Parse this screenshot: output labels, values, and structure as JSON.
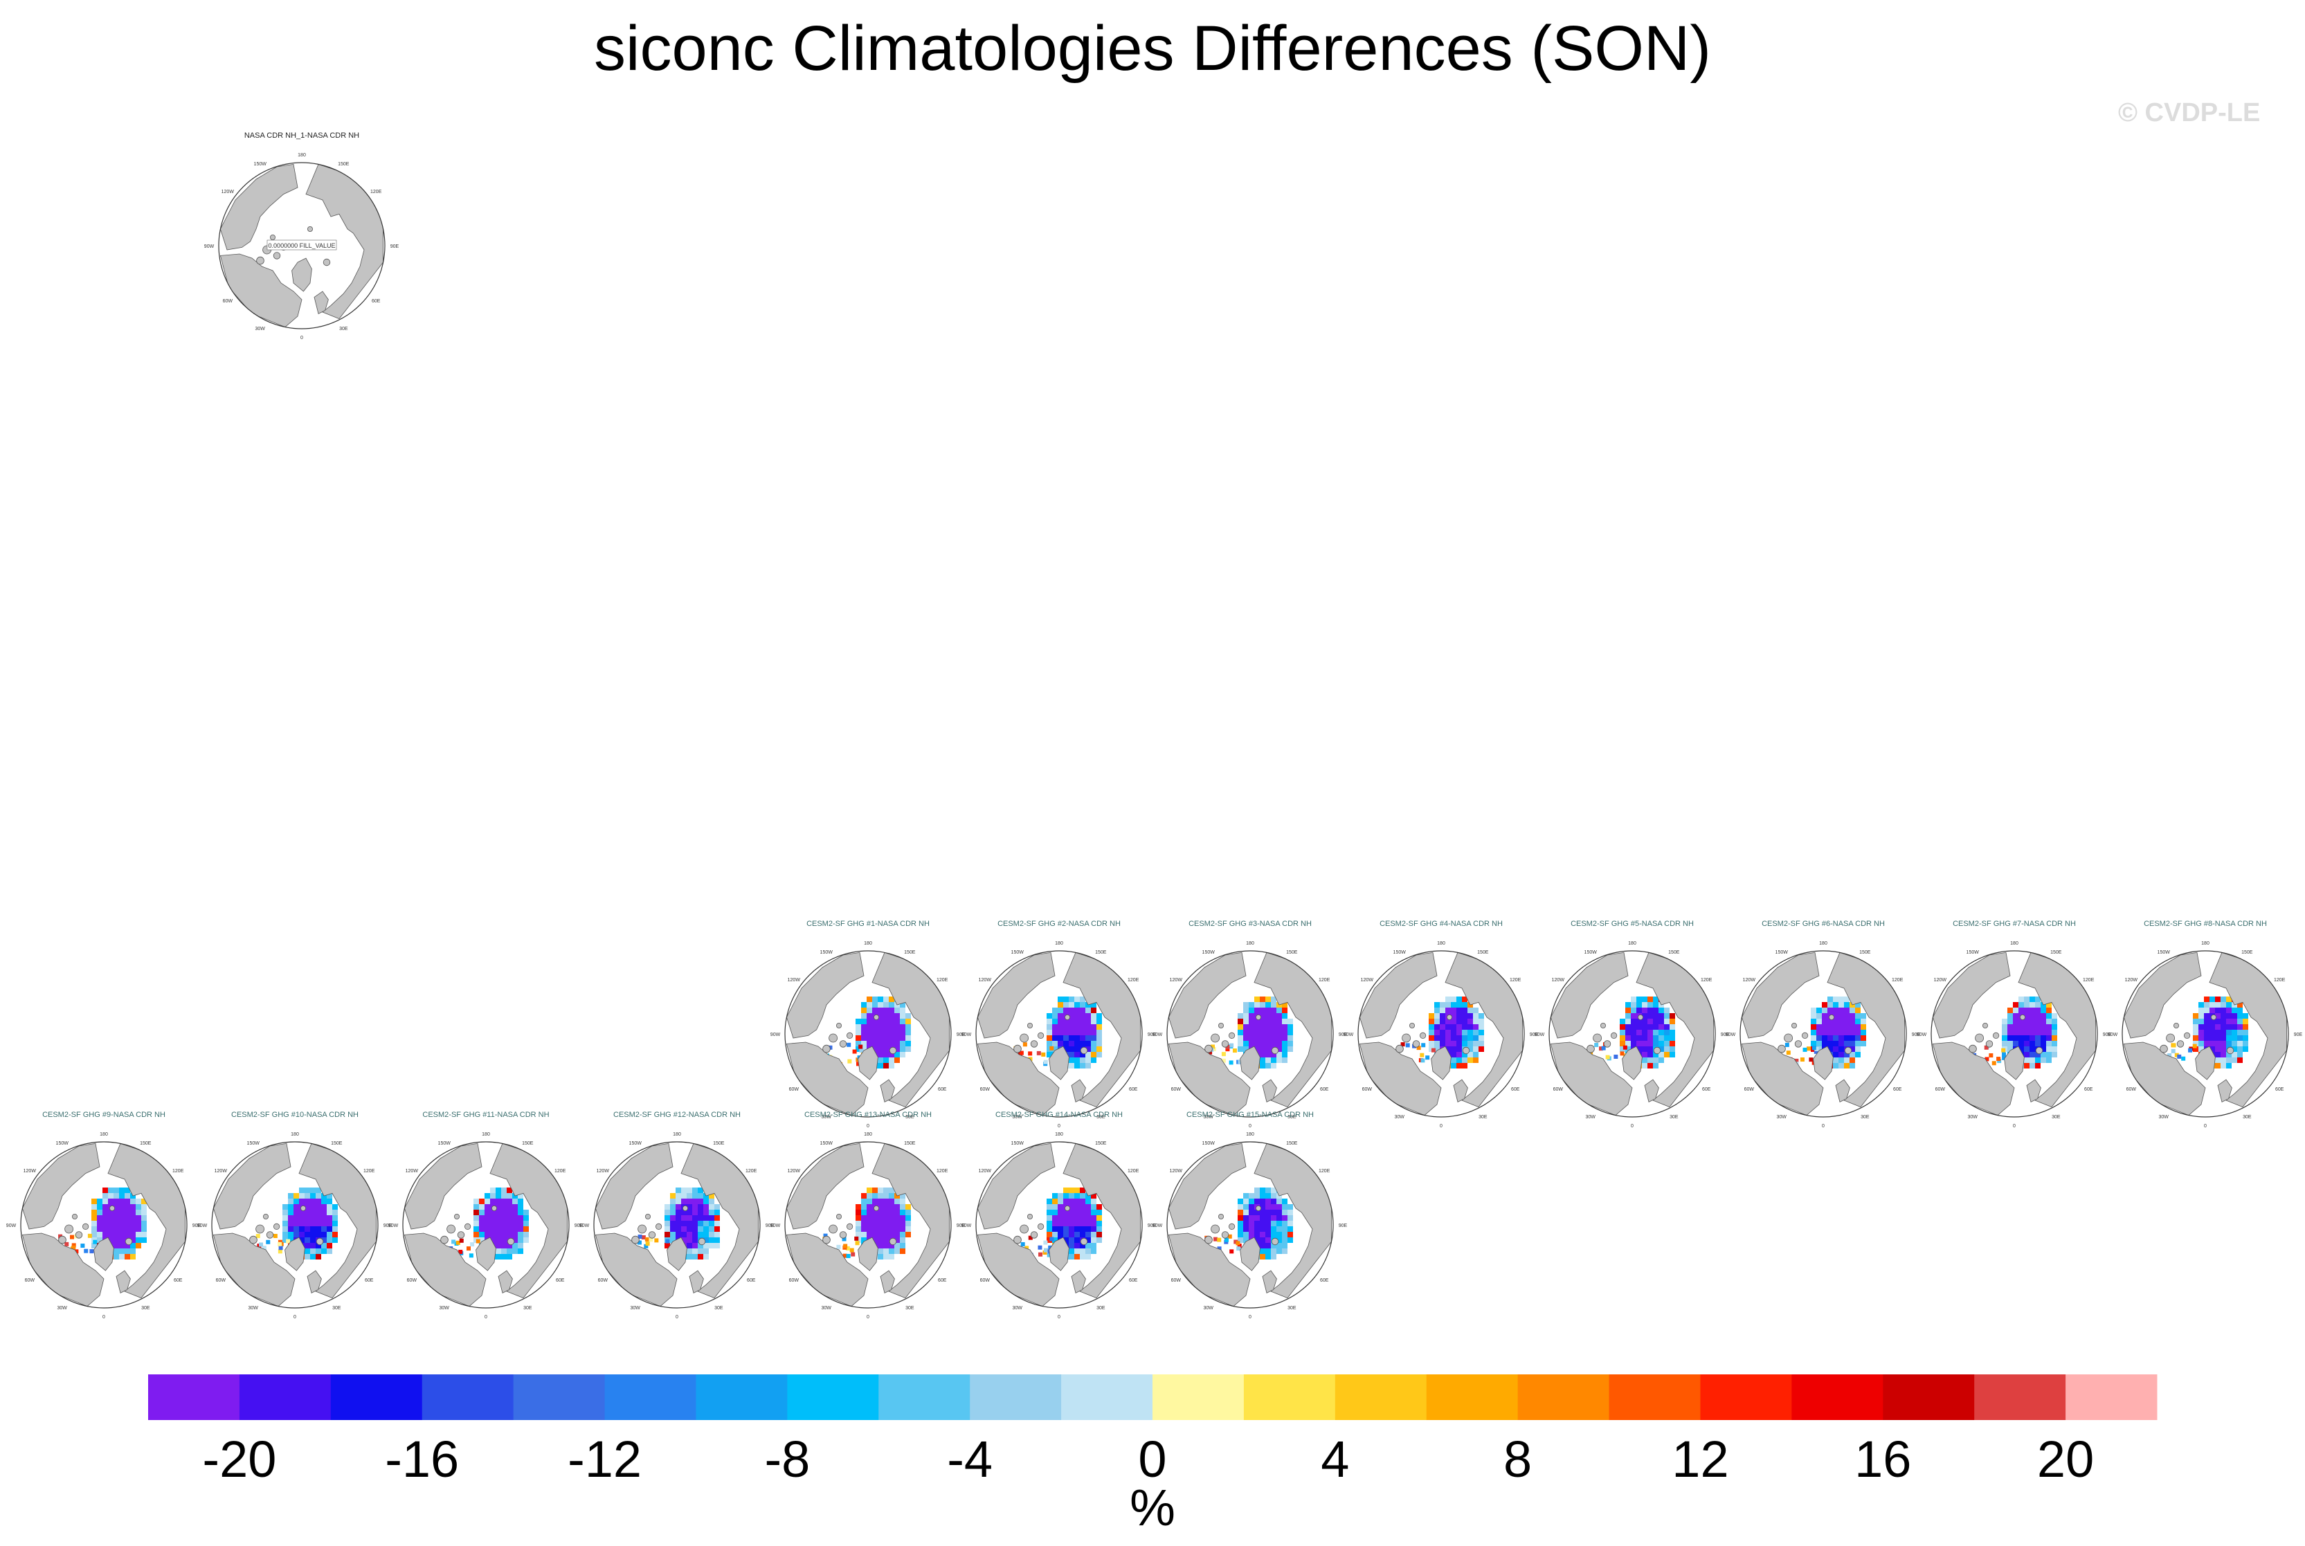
{
  "figure": {
    "title": "siconc Climatologies Differences (SON)",
    "watermark": "© CVDP-LE"
  },
  "chart_data": {
    "type": "heatmap",
    "title": "siconc Climatologies Differences (SON)",
    "projection": "north-polar-stereographic",
    "units": "%",
    "colorbar": {
      "label": "%",
      "levels": [
        -20,
        -18,
        -16,
        -14,
        -12,
        -10,
        -8,
        -6,
        -4,
        -2,
        0,
        2,
        4,
        6,
        8,
        10,
        12,
        14,
        16,
        18,
        20
      ],
      "tick_labels": [
        "-20",
        "-16",
        "-12",
        "-8",
        "-4",
        "0",
        "4",
        "8",
        "12",
        "16",
        "20"
      ],
      "colors": [
        "#7f1cf0",
        "#4510f2",
        "#1010f0",
        "#2c4ee8",
        "#3a6ee6",
        "#2882f0",
        "#12a0f2",
        "#00befa",
        "#58c6f2",
        "#98d0ee",
        "#bfe3f4",
        "#fff8a0",
        "#ffe448",
        "#ffc818",
        "#ffaa00",
        "#ff8800",
        "#ff5800",
        "#ff2000",
        "#ee0000",
        "#cc0000",
        "#de4040",
        "#ffb0b0"
      ]
    },
    "panels": [
      {
        "title": "NASA CDR NH_1-NASA CDR NH",
        "member": 0,
        "pattern": "zero",
        "center_label": "0.0000000 FILL_VALUE"
      },
      {
        "title": "CESM2-SF GHG #1-NASA CDR NH",
        "member": 1,
        "pattern": "a"
      },
      {
        "title": "CESM2-SF GHG #2-NASA CDR NH",
        "member": 2,
        "pattern": "b"
      },
      {
        "title": "CESM2-SF GHG #3-NASA CDR NH",
        "member": 3,
        "pattern": "a"
      },
      {
        "title": "CESM2-SF GHG #4-NASA CDR NH",
        "member": 4,
        "pattern": "c"
      },
      {
        "title": "CESM2-SF GHG #5-NASA CDR NH",
        "member": 5,
        "pattern": "c"
      },
      {
        "title": "CESM2-SF GHG #6-NASA CDR NH",
        "member": 6,
        "pattern": "b"
      },
      {
        "title": "CESM2-SF GHG #7-NASA CDR NH",
        "member": 7,
        "pattern": "b"
      },
      {
        "title": "CESM2-SF GHG #8-NASA CDR NH",
        "member": 8,
        "pattern": "c"
      },
      {
        "title": "CESM2-SF GHG #9-NASA CDR NH",
        "member": 9,
        "pattern": "a"
      },
      {
        "title": "CESM2-SF GHG #10-NASA CDR NH",
        "member": 10,
        "pattern": "b"
      },
      {
        "title": "CESM2-SF GHG #11-NASA CDR NH",
        "member": 11,
        "pattern": "a"
      },
      {
        "title": "CESM2-SF GHG #12-NASA CDR NH",
        "member": 12,
        "pattern": "c"
      },
      {
        "title": "CESM2-SF GHG #13-NASA CDR NH",
        "member": 13,
        "pattern": "a"
      },
      {
        "title": "CESM2-SF GHG #14-NASA CDR NH",
        "member": 14,
        "pattern": "b"
      },
      {
        "title": "CESM2-SF GHG #15-NASA CDR NH",
        "member": 15,
        "pattern": "c"
      }
    ],
    "map_labels": {
      "top": "180",
      "bottom": "0",
      "left": "90W",
      "right": "90E",
      "upper_left": "120W",
      "upper_right": "120E",
      "lower_left": "60W",
      "lower_right": "60E",
      "upper_left_2": "150W",
      "upper_right_2": "150E",
      "lower_left_2": "30W",
      "lower_right_2": "30E"
    }
  }
}
